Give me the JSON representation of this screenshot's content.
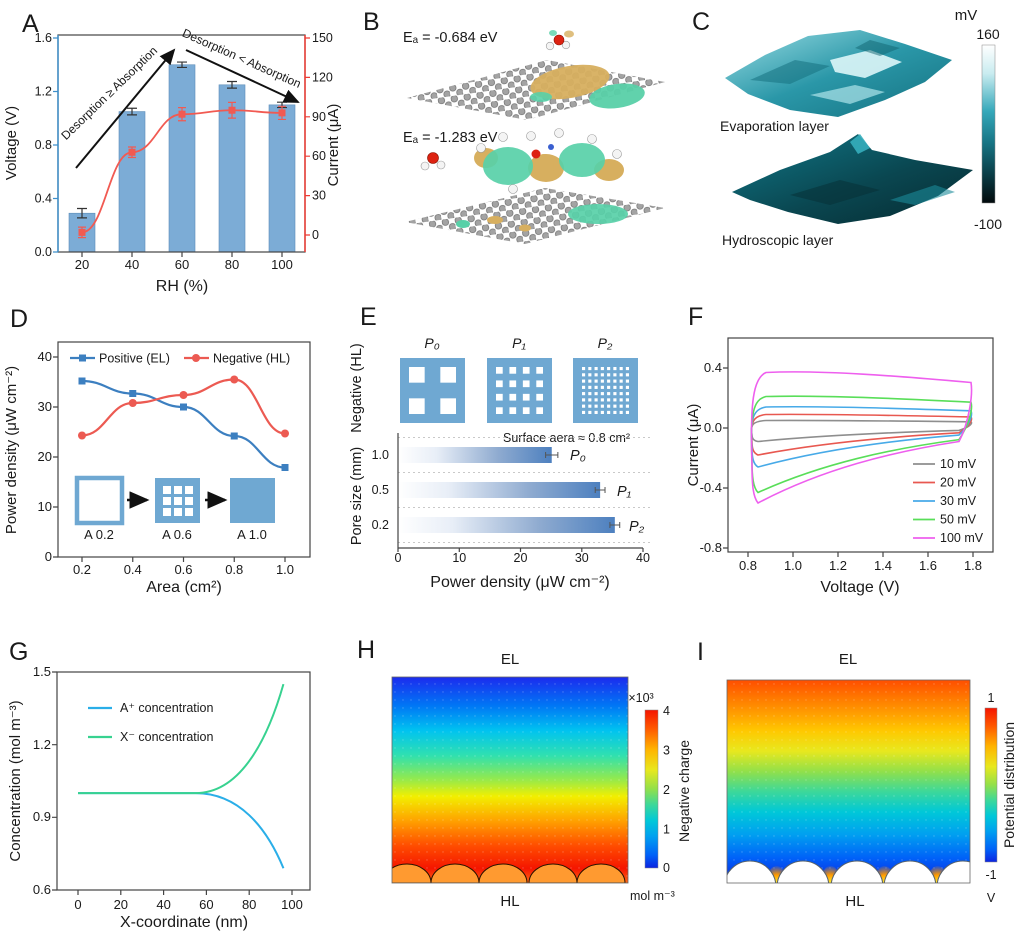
{
  "panel_labels": {
    "A": "A",
    "B": "B",
    "C": "C",
    "D": "D",
    "E": "E",
    "F": "F",
    "G": "G",
    "H": "H",
    "I": "I"
  },
  "chart_data": [
    {
      "panel": "A",
      "type": "bar+line dual-axis",
      "categories": [
        20,
        40,
        60,
        80,
        100
      ],
      "xticks": [
        "20",
        "40",
        "60",
        "80",
        "100"
      ],
      "xlabel": "RH (%)",
      "left_axis": {
        "label": "Voltage (V)",
        "color": "#3f8fca",
        "ticks": [
          "0.0",
          "0.4",
          "0.8",
          "1.2",
          "1.6"
        ],
        "ylim": [
          0,
          1.6
        ]
      },
      "right_axis": {
        "label": "Current (μA)",
        "color": "#ed3b33",
        "ticks": [
          "0",
          "30",
          "60",
          "90",
          "120",
          "150"
        ],
        "ylim": [
          0,
          150
        ]
      },
      "series": [
        {
          "name": "Voltage",
          "type": "bar",
          "axis": "left",
          "color": "#7cacd6",
          "values": [
            0.29,
            1.05,
            1.4,
            1.25,
            1.1
          ],
          "errors": [
            0.035,
            0.025,
            0.02,
            0.025,
            0.02
          ]
        },
        {
          "name": "Current",
          "type": "line",
          "axis": "right",
          "color": "#f15a52",
          "values": [
            2,
            63,
            92,
            95,
            93
          ],
          "errors": [
            4,
            4,
            5,
            6,
            5
          ]
        }
      ],
      "annotations": [
        {
          "text": "Desorption ≥ Absorption"
        },
        {
          "text": "Desorption < Absorption"
        }
      ]
    },
    {
      "panel": "D",
      "type": "line",
      "x": [
        0.2,
        0.4,
        0.6,
        0.8,
        1.0
      ],
      "xticks": [
        "0.2",
        "0.4",
        "0.6",
        "0.8",
        "1.0"
      ],
      "yticks": [
        "0",
        "10",
        "20",
        "30",
        "40"
      ],
      "xlabel": "Area (cm²)",
      "ylabel": "Power density (μW cm⁻²)",
      "ylim": [
        0,
        40
      ],
      "series": [
        {
          "name": "Positive (EL)",
          "color": "#3c7fc0",
          "marker": "square",
          "values": [
            35.2,
            32.7,
            30.0,
            24.2,
            17.9
          ]
        },
        {
          "name": "Negative (HL)",
          "color": "#ec5a52",
          "marker": "circle",
          "values": [
            24.3,
            30.8,
            32.4,
            35.5,
            24.7
          ]
        }
      ],
      "inset": {
        "labels": [
          "A 0.2",
          "A 0.6",
          "A 1.0"
        ]
      }
    },
    {
      "panel": "E",
      "type": "bar-horizontal",
      "side_label": "Negative (HL)",
      "pore_labels": [
        "P₀",
        "P₁",
        "P₂"
      ],
      "pore_grids": [
        2,
        4,
        8
      ],
      "note": "Surface aera ≈ 0.8 cm²",
      "categories": [
        "1.0",
        "0.5",
        "0.2"
      ],
      "values": [
        25.1,
        33.0,
        35.4
      ],
      "errors": [
        1.0,
        0.8,
        0.8
      ],
      "bar_labels": [
        "P₀",
        "P₁",
        "P₂"
      ],
      "bar_color": "#4d80bf",
      "xlim": [
        0,
        40
      ],
      "xticks": [
        "0",
        "10",
        "20",
        "30",
        "40"
      ],
      "xlabel": "Power density (μW cm⁻²)",
      "ylabel": "Pore size (mm)"
    },
    {
      "panel": "F",
      "type": "cv-loops",
      "xlabel": "Voltage (V)",
      "ylabel": "Current (μA)",
      "xlim": [
        0.8,
        1.8
      ],
      "ylim": [
        -0.8,
        0.6
      ],
      "xticks": [
        "0.8",
        "1.0",
        "1.2",
        "1.4",
        "1.6",
        "1.8"
      ],
      "yticks": [
        "0.4",
        "0.0",
        "-0.4",
        "-0.8"
      ],
      "series": [
        {
          "name": "10 mV",
          "color": "#8e8e8e",
          "top": 0.05,
          "bottom": -0.09
        },
        {
          "name": "20 mV",
          "color": "#e85850",
          "top": 0.09,
          "bottom": -0.18
        },
        {
          "name": "30 mV",
          "color": "#47aae8",
          "top": 0.14,
          "bottom": -0.26
        },
        {
          "name": "50 mV",
          "color": "#59de59",
          "top": 0.21,
          "bottom": -0.43
        },
        {
          "name": "100 mV",
          "color": "#ee5fee",
          "top": 0.37,
          "bottom": -0.5
        }
      ]
    },
    {
      "panel": "G",
      "type": "line",
      "xlabel": "X-coordinate (nm)",
      "ylabel": "Concentration (mol m⁻³)",
      "xlim": [
        0,
        100
      ],
      "ylim": [
        0.6,
        1.5
      ],
      "xticks": [
        "0",
        "20",
        "40",
        "60",
        "80",
        "100"
      ],
      "yticks": [
        "0.6",
        "0.9",
        "1.2",
        "1.5"
      ],
      "baseline": 1.0,
      "series": [
        {
          "name": "A⁺ concentration",
          "color": "#2aaee8",
          "start": 1.0,
          "end": 0.69
        },
        {
          "name": "X⁻ concentration",
          "color": "#37d290",
          "start": 1.0,
          "end": 1.45
        }
      ]
    },
    {
      "panel": "H",
      "type": "heatmap",
      "top_label": "EL",
      "bottom_label": "HL",
      "colorbar": {
        "scale": "×10³",
        "ticks": [
          "4",
          "3",
          "2",
          "1",
          "0"
        ],
        "label": "Negative charge",
        "unit": "mol m⁻³"
      }
    },
    {
      "panel": "I",
      "type": "heatmap",
      "top_label": "EL",
      "bottom_label": "HL",
      "colorbar": {
        "max": "1",
        "min": "-1",
        "label": "Potential distribution",
        "unit": "V"
      }
    }
  ],
  "panel_B": {
    "energy_1": "Eₐ = -0.684 eV",
    "energy_2": "Eₐ = -1.283 eV"
  },
  "panel_C": {
    "surface_1": "Evaporation layer",
    "surface_2": "Hydroscopic layer",
    "colorbar": {
      "unit": "mV",
      "max": "160",
      "min": "-100"
    }
  }
}
